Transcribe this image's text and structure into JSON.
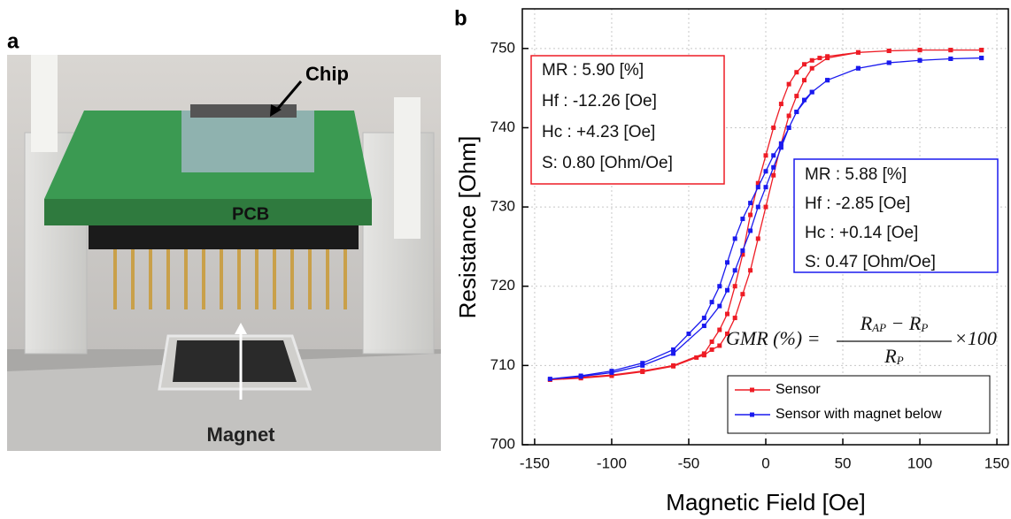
{
  "panel_a": {
    "label": "a",
    "annotations": [
      "Chip",
      "PCB",
      "Magnet"
    ]
  },
  "chart_data": {
    "type": "line",
    "panel_label": "b",
    "x_label": "Magnetic Field [Oe]",
    "y_label": "Resistance [Ohm]",
    "xlim": [
      -158,
      158
    ],
    "ylim": [
      700,
      755
    ],
    "xticks": [
      -150,
      -100,
      -50,
      0,
      50,
      100,
      150
    ],
    "yticks": [
      700,
      710,
      720,
      730,
      740,
      750
    ],
    "grid": true,
    "legend": "lower right",
    "series": [
      {
        "name": "Sensor",
        "color": "#ee1c25",
        "x": [
          140,
          120,
          100,
          80,
          60,
          40,
          35,
          30,
          25,
          20,
          15,
          10,
          5,
          0,
          -5,
          -10,
          -15,
          -20,
          -25,
          -30,
          -35,
          -40,
          -60,
          -80,
          -100,
          -120,
          -140,
          -120,
          -100,
          -80,
          -60,
          -45,
          -40,
          -35,
          -30,
          -25,
          -20,
          -15,
          -10,
          -5,
          0,
          5,
          10,
          15,
          20,
          25,
          30,
          40,
          60,
          80,
          100,
          120,
          140
        ],
        "values": [
          749.8,
          749.8,
          749.8,
          749.7,
          749.5,
          749,
          748.8,
          748.5,
          748,
          747,
          745.5,
          743,
          740,
          736.5,
          733,
          729,
          724,
          720,
          716.5,
          714.5,
          713,
          711.5,
          710,
          709.3,
          708.8,
          708.5,
          708.2,
          708.4,
          708.7,
          709.2,
          709.9,
          711,
          711.3,
          712,
          712.5,
          714,
          716,
          719,
          722,
          726,
          730,
          734,
          738,
          741.5,
          744,
          746,
          747.5,
          748.8,
          749.5,
          749.7,
          749.8,
          749.8,
          749.8
        ]
      },
      {
        "name": "Sensor with magnet below",
        "color": "#1a1aee",
        "x": [
          140,
          120,
          100,
          80,
          60,
          40,
          30,
          25,
          20,
          15,
          10,
          5,
          0,
          -5,
          -10,
          -15,
          -20,
          -25,
          -30,
          -35,
          -40,
          -50,
          -60,
          -80,
          -100,
          -120,
          -140,
          -120,
          -100,
          -80,
          -60,
          -40,
          -30,
          -25,
          -20,
          -15,
          -10,
          -5,
          0,
          5,
          10,
          15,
          20,
          30,
          40,
          60,
          80,
          100,
          120,
          140
        ],
        "values": [
          748.8,
          748.7,
          748.5,
          748.2,
          747.5,
          746,
          744.5,
          743.5,
          742,
          740,
          738,
          736.5,
          734.5,
          732.5,
          730.5,
          728.5,
          726,
          723,
          720,
          718,
          716,
          714,
          712,
          710.3,
          709.3,
          708.7,
          708.3,
          708.6,
          709.1,
          710,
          711.5,
          715,
          717.5,
          719.5,
          722,
          724.5,
          727,
          730,
          732.5,
          735,
          737.5,
          740,
          742,
          744.5,
          746,
          747.5,
          748.2,
          748.5,
          748.7,
          748.8
        ]
      }
    ],
    "annotations": [
      {
        "color": "#ee1c25",
        "lines": [
          "MR : 5.90 [%]",
          "Hf : -12.26 [Oe]",
          "Hc : +4.23  [Oe]",
          "S: 0.80 [Ohm/Oe]"
        ]
      },
      {
        "color": "#1a1aee",
        "lines": [
          "MR : 5.88 [%]",
          "Hf : -2.85 [Oe]",
          "Hc : +0.14 [Oe]",
          "S: 0.47 [Ohm/Oe]"
        ]
      }
    ],
    "formula": {
      "lhs": "GMR (%) =",
      "numerator": [
        "R",
        "AP",
        " − R",
        "P"
      ],
      "denominator": [
        "R",
        "P"
      ],
      "factor": "×100"
    }
  }
}
